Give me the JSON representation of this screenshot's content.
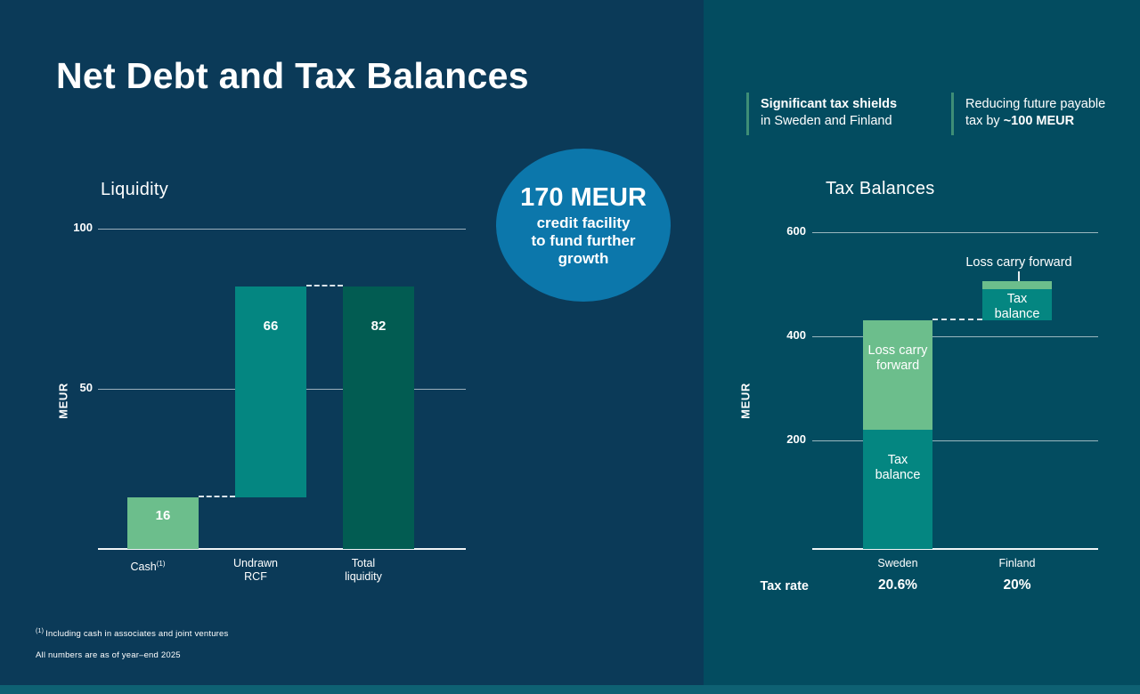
{
  "slide": {
    "title": "Net Debt and Tax Balances",
    "footnote1_marker": "(1)",
    "footnote1": "Including cash in associates and joint ventures",
    "footnote2": "All numbers are as of year–end 2025"
  },
  "badge": {
    "headline": "170 MEUR",
    "line1": "credit facility",
    "line2": "to fund further",
    "line3": "growth"
  },
  "callouts": {
    "shields": {
      "bold": "Significant tax shields",
      "regular": "in Sweden and Finland"
    },
    "reduction": {
      "line1": "Reducing future payable",
      "line2_prefix": "tax by ",
      "line2_bold": "~100 MEUR"
    }
  },
  "colors": {
    "background_left": "#0B3A58",
    "background_right": "#034C60",
    "bottom_strip": "#0E6173",
    "badge_circle": "#0C77AB",
    "bar_light_green": "#6CBE8C",
    "bar_teal": "#048681",
    "bar_dark_green": "#025C52",
    "callout_accent": "#3E8E76",
    "text": "#FFFFFF"
  },
  "chart_data": [
    {
      "type": "bar",
      "variant": "waterfall",
      "title": "Liquidity",
      "ylabel": "MEUR",
      "ylim": [
        0,
        110
      ],
      "yticks": [
        50,
        100
      ],
      "grid": true,
      "categories": [
        "Cash",
        "Undrawn RCF",
        "Total liquidity"
      ],
      "values": [
        16,
        66,
        82
      ],
      "bars": [
        {
          "category": "Cash",
          "category_sup": "(1)",
          "start": 0,
          "segments": [
            {
              "value": 16,
              "color": "bar_light_green",
              "show_value": true
            }
          ]
        },
        {
          "category": "Undrawn RCF",
          "category_display": "Undrawn\nRCF",
          "start": 16,
          "segments": [
            {
              "value": 66,
              "color": "bar_teal",
              "show_value": true
            }
          ]
        },
        {
          "category": "Total liquidity",
          "category_display": "Total\nliquidity",
          "start": 0,
          "segments": [
            {
              "value": 82,
              "color": "bar_dark_green",
              "show_value": true
            }
          ]
        }
      ],
      "connectors": [
        {
          "from_bar": 0,
          "to_bar": 1,
          "level": 16
        },
        {
          "from_bar": 1,
          "to_bar": 2,
          "level": 82
        }
      ]
    },
    {
      "type": "bar",
      "variant": "stacked-waterfall",
      "title": "Tax Balances",
      "ylabel": "MEUR",
      "ylim": [
        0,
        650
      ],
      "yticks": [
        200,
        400,
        600
      ],
      "grid": true,
      "categories": [
        "Sweden",
        "Finland"
      ],
      "bars": [
        {
          "category": "Sweden",
          "start": 0,
          "segments": [
            {
              "label": "Tax balance",
              "label_display": "Tax\nbalance",
              "value": 220,
              "color": "bar_teal",
              "label_pos": "inside"
            },
            {
              "label": "Loss carry forward",
              "label_display": "Loss carry\nforward",
              "value": 210,
              "color": "bar_light_green",
              "label_pos": "inside"
            }
          ]
        },
        {
          "category": "Finland",
          "start": 430,
          "segments": [
            {
              "label": "Tax balance",
              "label_display": "Tax\nbalance",
              "value": 60,
              "color": "bar_teal",
              "label_pos": "inside"
            },
            {
              "label": "Loss carry forward",
              "value": 15,
              "color": "bar_light_green",
              "label_pos": "above"
            }
          ]
        }
      ],
      "connectors": [
        {
          "from_bar": 0,
          "to_bar": 1,
          "level": 430
        }
      ],
      "footer": {
        "label": "Tax rate",
        "values": [
          "20.6%",
          "20%"
        ]
      }
    }
  ]
}
